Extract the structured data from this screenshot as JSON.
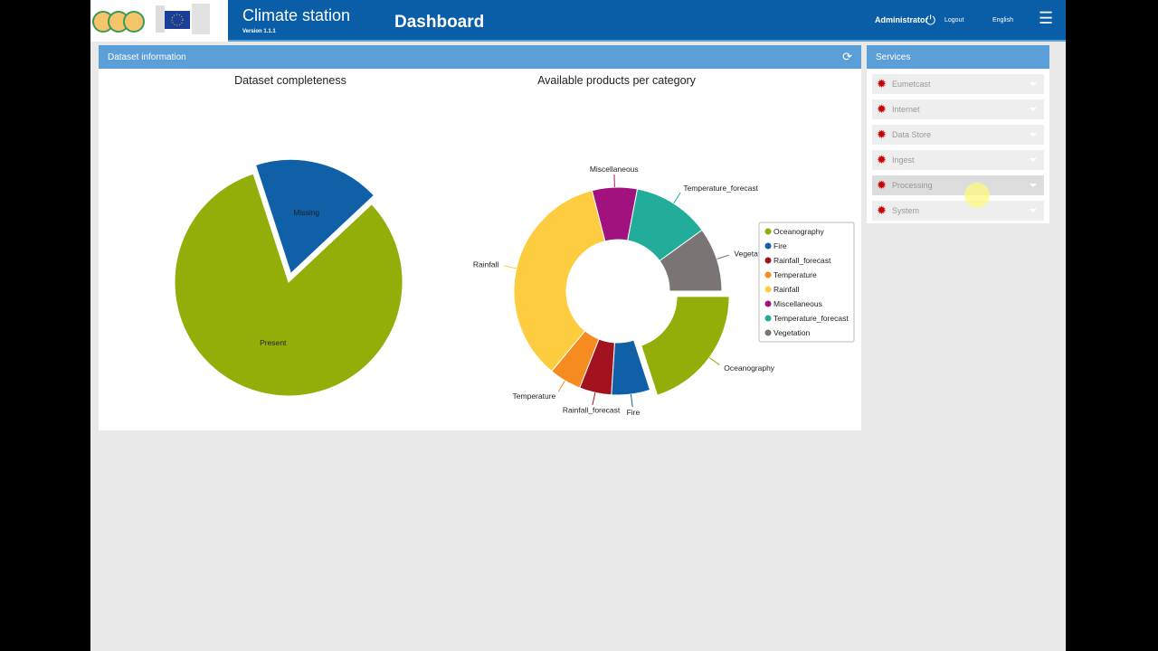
{
  "header": {
    "app_title": "Climate station",
    "version": "Version 1.1.1",
    "page_title": "Dashboard",
    "user": "Administrator",
    "logout": "Logout",
    "language": "English",
    "logo_caption": "European Commission"
  },
  "dataset_panel": {
    "title": "Dataset information"
  },
  "services": {
    "title": "Services",
    "items": [
      {
        "label": "Eumetcast"
      },
      {
        "label": "Internet"
      },
      {
        "label": "Data Store"
      },
      {
        "label": "Ingest"
      },
      {
        "label": "Processing",
        "highlighted": true
      },
      {
        "label": "System"
      }
    ]
  },
  "chart_data": [
    {
      "type": "pie",
      "title": "Dataset completeness",
      "labels": [
        "Missing",
        "Present"
      ],
      "values": [
        18,
        82
      ],
      "colors": [
        "#1060a8",
        "#93ad09"
      ],
      "exploded": "Missing"
    },
    {
      "type": "pie",
      "subtype": "donut",
      "title": "Available products per category",
      "labels": [
        "Oceanography",
        "Fire",
        "Rainfall_forecast",
        "Temperature",
        "Rainfall",
        "Miscellaneous",
        "Temperature_forecast",
        "Vegetation"
      ],
      "values": [
        20,
        6,
        5,
        5,
        35,
        7,
        12,
        10
      ],
      "colors": [
        "#93ad09",
        "#1060a8",
        "#a3121f",
        "#f68b1f",
        "#fecd3f",
        "#a1127f",
        "#21ad9a",
        "#7b7474"
      ],
      "exploded": "Oceanography",
      "legend": "right"
    }
  ]
}
